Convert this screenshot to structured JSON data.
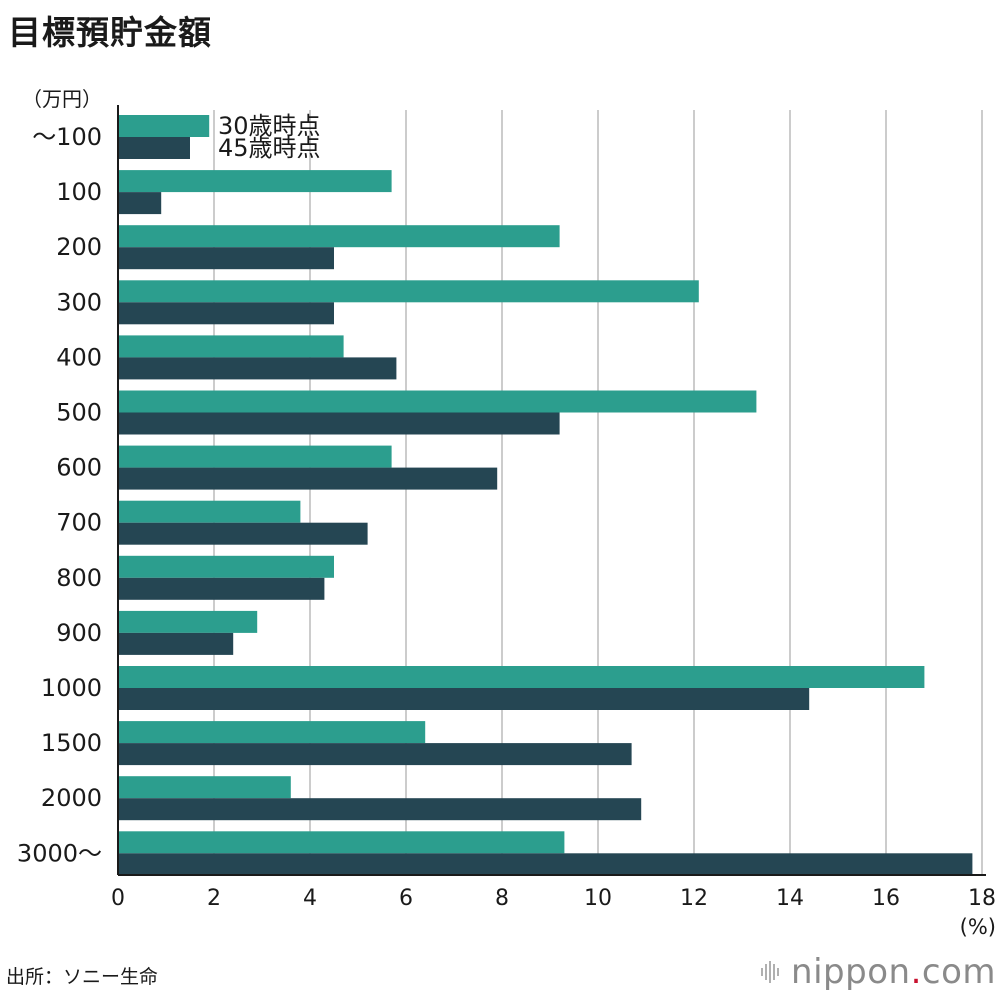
{
  "header": {
    "title": "目標預貯金額"
  },
  "footer": {
    "source": "出所：ソニー生命",
    "brand_name": "nippon",
    "brand_dot": ".",
    "brand_tld": "com"
  },
  "chart_data": {
    "type": "bar",
    "orientation": "horizontal",
    "title": "目標預貯金額",
    "y_unit_label": "（万円）",
    "x_unit_label": "(%)",
    "categories": [
      "～100",
      "100",
      "200",
      "300",
      "400",
      "500",
      "600",
      "700",
      "800",
      "900",
      "1000",
      "1500",
      "2000",
      "3000～"
    ],
    "series": [
      {
        "name": "30歳時点",
        "color": "#2c9e8e",
        "values": [
          1.9,
          5.7,
          9.2,
          12.1,
          4.7,
          13.3,
          5.7,
          3.8,
          4.5,
          2.9,
          16.8,
          6.4,
          3.6,
          9.3
        ]
      },
      {
        "name": "45歳時点",
        "color": "#254653",
        "values": [
          1.5,
          0.9,
          4.5,
          4.5,
          5.8,
          9.2,
          7.9,
          5.2,
          4.3,
          2.4,
          14.4,
          10.7,
          10.9,
          17.8
        ]
      }
    ],
    "xlim": [
      0,
      18
    ],
    "xticks": [
      0,
      2,
      4,
      6,
      8,
      10,
      12,
      14,
      16,
      18
    ],
    "grid": true,
    "legend_position": "inline-top-left"
  }
}
